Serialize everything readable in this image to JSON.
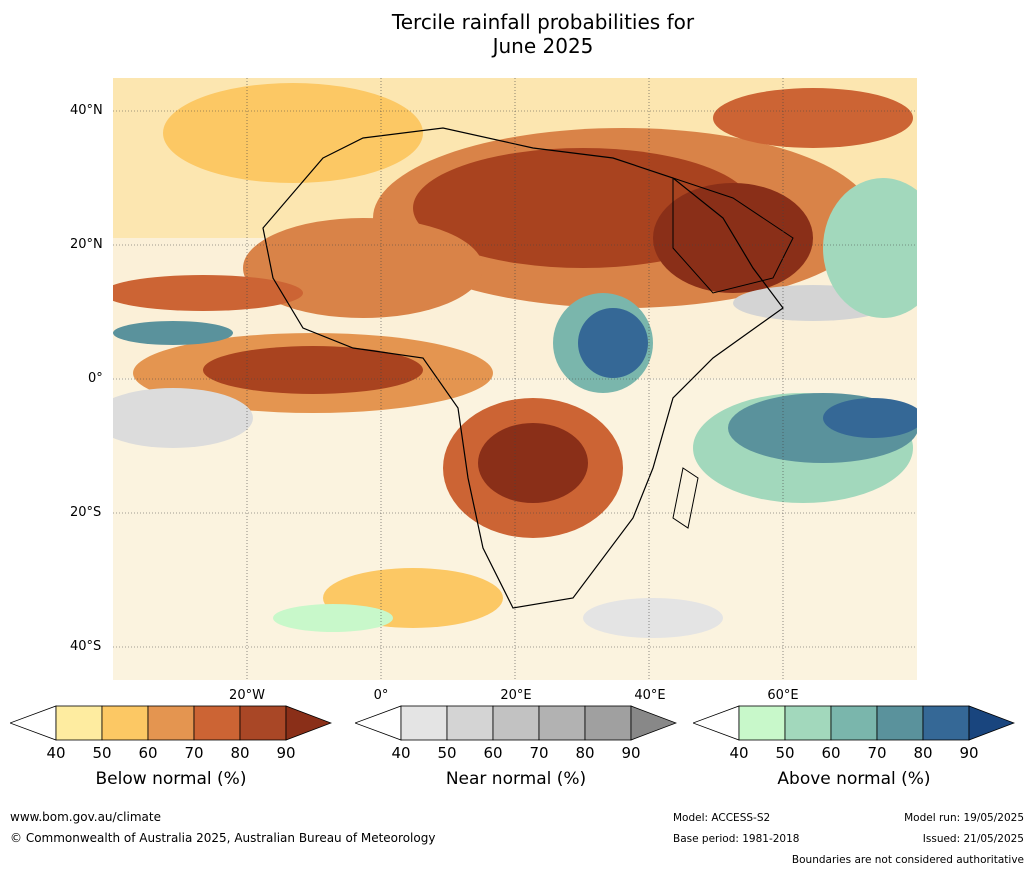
{
  "title": {
    "line1": "Tercile rainfall probabilities for",
    "line2": "June 2025"
  },
  "map": {
    "lat_labels": [
      "40°N",
      "20°N",
      "0°",
      "20°S",
      "40°S"
    ],
    "lon_labels": [
      "20°W",
      "0°",
      "20°E",
      "40°E",
      "60°E"
    ]
  },
  "colorbars": [
    {
      "title": "Below normal (%)",
      "ticks": [
        "40",
        "50",
        "60",
        "70",
        "80",
        "90"
      ],
      "colors": [
        "#ffffff",
        "#feeca0",
        "#fcc864",
        "#e49550",
        "#cc6434",
        "#a94726",
        "#8a2f18"
      ]
    },
    {
      "title": "Near normal (%)",
      "ticks": [
        "40",
        "50",
        "60",
        "70",
        "80",
        "90"
      ],
      "colors": [
        "#ffffff",
        "#e4e4e4",
        "#d4d4d4",
        "#c2c2c2",
        "#b2b2b2",
        "#a0a0a0",
        "#888888"
      ]
    },
    {
      "title": "Above normal (%)",
      "ticks": [
        "40",
        "50",
        "60",
        "70",
        "80",
        "90"
      ],
      "colors": [
        "#ffffff",
        "#c8f8ca",
        "#a2d8bc",
        "#7ab6ac",
        "#5a929c",
        "#356896",
        "#19457e"
      ]
    }
  ],
  "footer": {
    "website": "www.bom.gov.au/climate",
    "copyright": "© Commonwealth of Australia 2025, Australian Bureau of Meteorology",
    "model": "Model: ACCESS-S2",
    "base_period": "Base period: 1981-2018",
    "model_run": "Model run: 19/05/2025",
    "issued": "Issued: 21/05/2025",
    "disclaimer": "Boundaries are not considered authoritative"
  }
}
